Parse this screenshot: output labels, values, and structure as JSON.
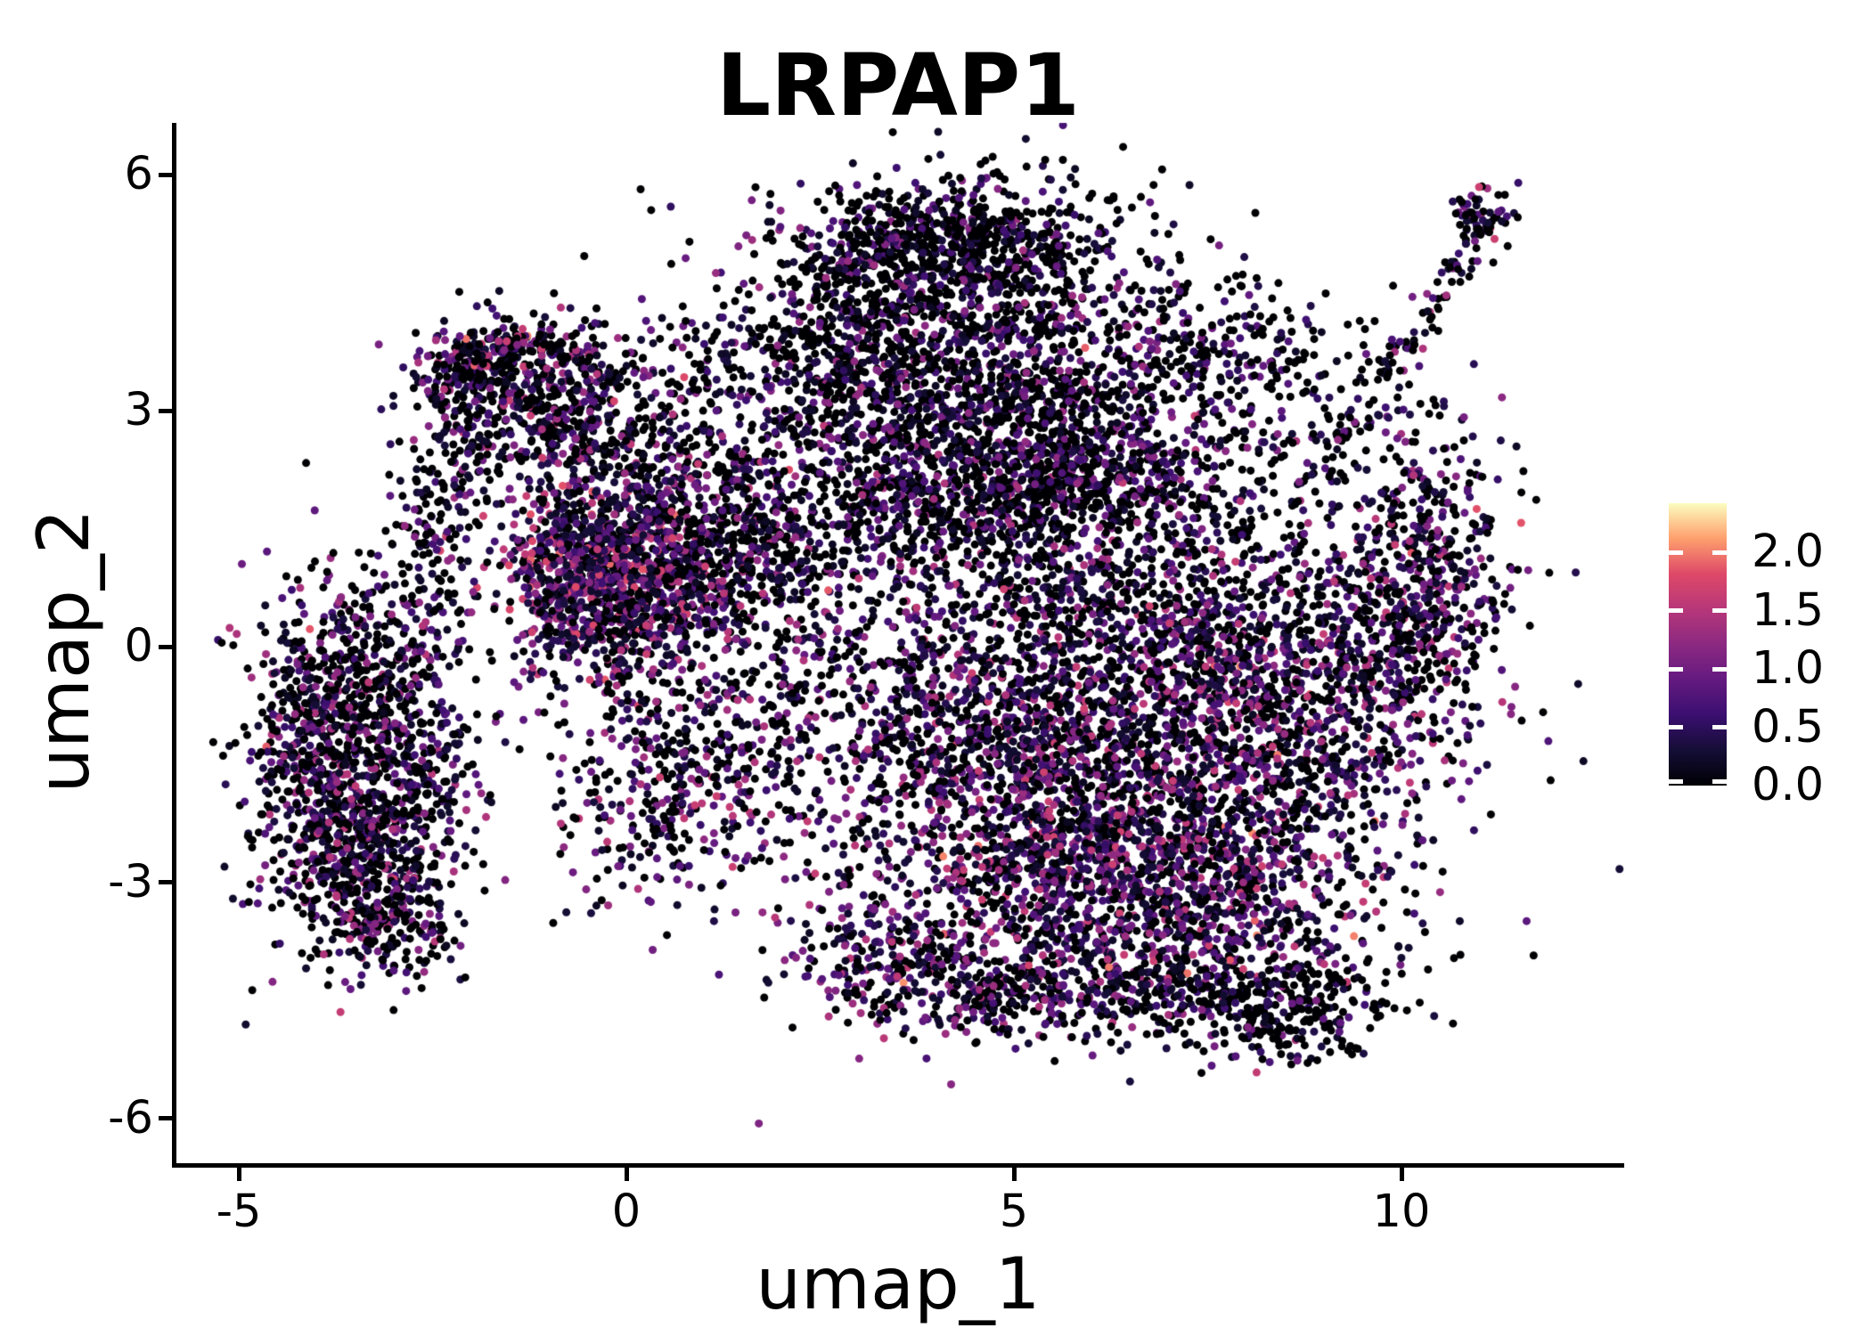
{
  "figure": {
    "title": "LRPAP1",
    "background": "#ffffff"
  },
  "axes": {
    "x": {
      "label": "umap_1",
      "range": [
        -5.8,
        12.8
      ],
      "ticks": [
        {
          "value": -5,
          "label": "-5"
        },
        {
          "value": 0,
          "label": "0"
        },
        {
          "value": 5,
          "label": "5"
        },
        {
          "value": 10,
          "label": "10"
        }
      ]
    },
    "y": {
      "label": "umap_2",
      "range": [
        -6.6,
        6.6
      ],
      "ticks": [
        {
          "value": 6,
          "label": "6"
        },
        {
          "value": 3,
          "label": "3"
        },
        {
          "value": 0,
          "label": "0"
        },
        {
          "value": -3,
          "label": "-3"
        },
        {
          "value": -6,
          "label": "-6"
        }
      ]
    }
  },
  "legend": {
    "vmin": 0.0,
    "vmax": 2.42,
    "ticks": [
      {
        "value": 2.0,
        "label": "2.0"
      },
      {
        "value": 1.5,
        "label": "1.5"
      },
      {
        "value": 1.0,
        "label": "1.0"
      },
      {
        "value": 0.5,
        "label": "0.5"
      },
      {
        "value": 0.0,
        "label": "0.0"
      }
    ],
    "tick_color": "#ffffff"
  },
  "chart_data": {
    "type": "scatter",
    "title": "LRPAP1",
    "xlabel": "umap_1",
    "ylabel": "umap_2",
    "xlim": [
      -5.8,
      12.8
    ],
    "ylim": [
      -6.6,
      6.6
    ],
    "grid": false,
    "legend_position": "right",
    "colormap_name": "magma",
    "colormap_stops": [
      [
        0.0,
        "#000004"
      ],
      [
        0.125,
        "#140e36"
      ],
      [
        0.25,
        "#3b0f70"
      ],
      [
        0.375,
        "#641a80"
      ],
      [
        0.5,
        "#8c2981"
      ],
      [
        0.625,
        "#b73779"
      ],
      [
        0.75,
        "#de4968"
      ],
      [
        0.875,
        "#fe9f6d"
      ],
      [
        1.0,
        "#fcfdbf"
      ]
    ],
    "value_min": 0.0,
    "value_max": 2.42,
    "point_radius_px": 4.5,
    "n_points_approx": 15800,
    "seed": 42,
    "clusters": [
      {
        "cx": 4.1,
        "cy": 4.55,
        "sx": 1.35,
        "sy": 0.72,
        "n": 850,
        "p0": 0.55,
        "vs": 1.15
      },
      {
        "cx": 3.1,
        "cy": 3.35,
        "sx": 0.95,
        "sy": 0.62,
        "n": 520,
        "p0": 0.52,
        "vs": 1.25
      },
      {
        "cx": 5.1,
        "cy": 3.0,
        "sx": 1.15,
        "sy": 0.8,
        "n": 650,
        "p0": 0.5,
        "vs": 1.3
      },
      {
        "cx": 4.4,
        "cy": 5.25,
        "sx": 0.95,
        "sy": 0.3,
        "n": 320,
        "p0": 0.68,
        "vs": 0.9
      },
      {
        "cx": 4.6,
        "cy": 1.95,
        "sx": 1.6,
        "sy": 0.5,
        "n": 800,
        "p0": 0.48,
        "vs": 1.3
      },
      {
        "cx": 6.3,
        "cy": 2.6,
        "sx": 0.7,
        "sy": 0.6,
        "n": 280,
        "p0": 0.5,
        "vs": 1.2
      },
      {
        "cx": -1.6,
        "cy": 3.55,
        "sx": 0.55,
        "sy": 0.33,
        "n": 270,
        "p0": 0.42,
        "vs": 1.5
      },
      {
        "cx": -0.9,
        "cy": 2.95,
        "sx": 0.62,
        "sy": 0.5,
        "n": 250,
        "p0": 0.48,
        "vs": 1.35
      },
      {
        "cx": -2.15,
        "cy": 2.95,
        "sx": 0.27,
        "sy": 0.6,
        "n": 130,
        "p0": 0.5,
        "vs": 1.3
      },
      {
        "cx": -0.1,
        "cy": 2.45,
        "sx": 0.75,
        "sy": 0.55,
        "n": 170,
        "p0": 0.5,
        "vs": 1.3
      },
      {
        "cx": -0.65,
        "cy": 0.9,
        "sx": 0.55,
        "sy": 0.6,
        "n": 560,
        "p0": 0.22,
        "vs": 1.75
      },
      {
        "cx": 0.15,
        "cy": 0.55,
        "sx": 0.62,
        "sy": 0.6,
        "n": 420,
        "p0": 0.3,
        "vs": 1.6
      },
      {
        "cx": 0.9,
        "cy": 1.15,
        "sx": 0.7,
        "sy": 0.5,
        "n": 300,
        "p0": 0.38,
        "vs": 1.45
      },
      {
        "cx": -4.05,
        "cy": -1.5,
        "sx": 0.5,
        "sy": 1.0,
        "n": 500,
        "p0": 0.45,
        "vs": 1.35
      },
      {
        "cx": -3.35,
        "cy": -2.5,
        "sx": 0.55,
        "sy": 0.7,
        "n": 420,
        "p0": 0.45,
        "vs": 1.4
      },
      {
        "cx": -3.55,
        "cy": -0.3,
        "sx": 0.5,
        "sy": 0.6,
        "n": 300,
        "p0": 0.5,
        "vs": 1.3
      },
      {
        "cx": -2.65,
        "cy": -1.4,
        "sx": 0.45,
        "sy": 0.85,
        "n": 250,
        "p0": 0.45,
        "vs": 1.35
      },
      {
        "cx": -2.55,
        "cy": 1.3,
        "sx": 0.3,
        "sy": 0.8,
        "n": 150,
        "p0": 0.55,
        "vs": 1.2
      },
      {
        "cx": -3.05,
        "cy": -3.5,
        "sx": 0.45,
        "sy": 0.4,
        "n": 170,
        "p0": 0.48,
        "vs": 1.35
      },
      {
        "cx": 1.9,
        "cy": -0.7,
        "sx": 1.3,
        "sy": 0.95,
        "n": 420,
        "p0": 0.45,
        "vs": 1.4
      },
      {
        "cx": 0.5,
        "cy": -1.9,
        "sx": 0.8,
        "sy": 0.7,
        "n": 280,
        "p0": 0.4,
        "vs": 1.5
      },
      {
        "cx": 2.3,
        "cy": 1.2,
        "sx": 1.0,
        "sy": 0.55,
        "n": 260,
        "p0": 0.52,
        "vs": 1.25
      },
      {
        "cx": 1.1,
        "cy": 3.3,
        "sx": 1.05,
        "sy": 0.85,
        "n": 190,
        "p0": 0.55,
        "vs": 1.1
      },
      {
        "cx": 0.4,
        "cy": 1.85,
        "sx": 0.8,
        "sy": 0.45,
        "n": 180,
        "p0": 0.45,
        "vs": 1.4
      },
      {
        "cx": 6.5,
        "cy": -1.4,
        "sx": 1.5,
        "sy": 1.15,
        "n": 1350,
        "p0": 0.35,
        "vs": 1.5
      },
      {
        "cx": 8.5,
        "cy": -0.6,
        "sx": 1.2,
        "sy": 1.05,
        "n": 850,
        "p0": 0.4,
        "vs": 1.45
      },
      {
        "cx": 5.4,
        "cy": -2.9,
        "sx": 1.1,
        "sy": 0.8,
        "n": 680,
        "p0": 0.33,
        "vs": 1.55
      },
      {
        "cx": 7.6,
        "cy": -3.2,
        "sx": 1.2,
        "sy": 0.7,
        "n": 650,
        "p0": 0.35,
        "vs": 1.5
      },
      {
        "cx": 9.9,
        "cy": 0.6,
        "sx": 0.75,
        "sy": 1.0,
        "n": 420,
        "p0": 0.42,
        "vs": 1.4
      },
      {
        "cx": 10.45,
        "cy": 1.2,
        "sx": 0.4,
        "sy": 0.85,
        "n": 170,
        "p0": 0.42,
        "vs": 1.4
      },
      {
        "cx": 6.1,
        "cy": 0.7,
        "sx": 1.2,
        "sy": 0.7,
        "n": 480,
        "p0": 0.45,
        "vs": 1.35
      },
      {
        "cx": 4.3,
        "cy": -0.9,
        "sx": 0.85,
        "sy": 0.9,
        "n": 380,
        "p0": 0.4,
        "vs": 1.45
      },
      {
        "cx": 8.55,
        "cy": -4.6,
        "sx": 0.75,
        "sy": 0.3,
        "n": 270,
        "p0": 0.66,
        "vs": 0.95
      },
      {
        "cx": 6.6,
        "cy": -4.3,
        "sx": 0.95,
        "sy": 0.35,
        "n": 240,
        "p0": 0.5,
        "vs": 1.3
      },
      {
        "cx": 3.4,
        "cy": -4.0,
        "sx": 0.7,
        "sy": 0.45,
        "n": 230,
        "p0": 0.42,
        "vs": 1.45
      },
      {
        "cx": 4.6,
        "cy": -4.4,
        "sx": 0.6,
        "sy": 0.3,
        "n": 150,
        "p0": 0.5,
        "vs": 1.3
      },
      {
        "cx": 11.0,
        "cy": 5.45,
        "sx": 0.2,
        "sy": 0.18,
        "n": 65,
        "p0": 0.45,
        "vs": 1.5
      },
      {
        "cx": 8.9,
        "cy": 2.7,
        "sx": 0.85,
        "sy": 0.6,
        "n": 130,
        "p0": 0.58,
        "vs": 1.1
      },
      {
        "cx": 8.3,
        "cy": 3.7,
        "sx": 0.8,
        "sy": 0.4,
        "n": 100,
        "p0": 0.7,
        "vs": 0.9
      },
      {
        "cx": 7.3,
        "cy": 3.9,
        "sx": 0.6,
        "sy": 0.5,
        "n": 90,
        "p0": 0.62,
        "vs": 1.0
      },
      {
        "cx": 3.6,
        "cy": 0.2,
        "sx": 3.3,
        "sy": 1.7,
        "n": 320,
        "p0": 0.45,
        "vs": 1.35
      },
      {
        "cx": 6.2,
        "cy": -2.0,
        "sx": 2.6,
        "sy": 1.6,
        "n": 280,
        "p0": 0.4,
        "vs": 1.45
      }
    ],
    "streaks": [
      {
        "x0": 9.1,
        "y0": 2.6,
        "x1": 11.05,
        "y1": 5.3,
        "jit": 0.13,
        "n": 85,
        "p0": 0.5,
        "vs": 1.3
      },
      {
        "x0": -2.05,
        "y0": 3.9,
        "x1": -0.6,
        "y1": 3.8,
        "jit": 0.1,
        "n": 90,
        "p0": 0.42,
        "vs": 1.5
      },
      {
        "x0": 2.6,
        "y0": 4.6,
        "x1": 3.6,
        "y1": 5.3,
        "jit": 0.15,
        "n": 80,
        "p0": 0.6,
        "vs": 1.1
      }
    ]
  }
}
